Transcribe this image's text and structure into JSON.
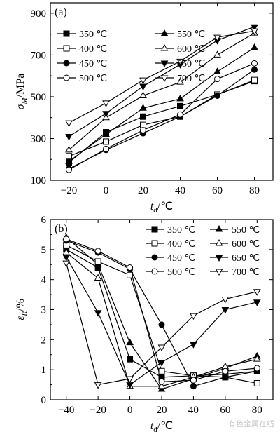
{
  "chart_data": [
    {
      "type": "line",
      "panel_label": "(a)",
      "xlabel": "t_d/℃",
      "ylabel": "σ_M/MPa",
      "x": [
        -20,
        0,
        20,
        40,
        60,
        80
      ],
      "xlim": [
        -30,
        90
      ],
      "ylim": [
        100,
        950
      ],
      "xticks": [
        -20,
        0,
        20,
        40,
        60,
        80
      ],
      "yticks": [
        100,
        300,
        500,
        700,
        900
      ],
      "legend_position": "top-left",
      "series": [
        {
          "name": "350 ℃",
          "marker": "filled-square",
          "values": [
            185,
            330,
            405,
            455,
            510,
            575
          ]
        },
        {
          "name": "550 ℃",
          "marker": "filled-triangle",
          "values": [
            190,
            320,
            445,
            490,
            620,
            735
          ]
        },
        {
          "name": "400 ℃",
          "marker": "open-square",
          "values": [
            215,
            285,
            365,
            405,
            510,
            580
          ]
        },
        {
          "name": "600 ℃",
          "marker": "open-triangle",
          "values": [
            245,
            400,
            505,
            570,
            700,
            805
          ]
        },
        {
          "name": "450 ℃",
          "marker": "filled-circle",
          "values": [
            155,
            245,
            325,
            405,
            505,
            630
          ]
        },
        {
          "name": "650 ℃",
          "marker": "filled-inv-triangle",
          "values": [
            310,
            420,
            550,
            655,
            770,
            835
          ]
        },
        {
          "name": "500 ℃",
          "marker": "open-circle",
          "values": [
            150,
            250,
            340,
            415,
            585,
            660
          ]
        },
        {
          "name": "700 ℃",
          "marker": "open-inv-triangle",
          "values": [
            375,
            470,
            580,
            670,
            785,
            815
          ]
        }
      ]
    },
    {
      "type": "line",
      "panel_label": "(b)",
      "xlabel": "t_d/℃",
      "ylabel": "ε_R/%",
      "x": [
        -40,
        -20,
        0,
        20,
        40,
        60,
        80
      ],
      "xlim": [
        -50,
        90
      ],
      "ylim": [
        0,
        6
      ],
      "xticks": [
        -40,
        -20,
        0,
        20,
        40,
        60,
        80
      ],
      "yticks": [
        0,
        1,
        2,
        3,
        4,
        5,
        6
      ],
      "legend_position": "top-right",
      "series": [
        {
          "name": "350 ℃",
          "marker": "filled-square",
          "values": [
            5.0,
            4.4,
            1.35,
            0.75,
            0.8,
            0.85,
            0.95
          ]
        },
        {
          "name": "550 ℃",
          "marker": "filled-triangle",
          "values": [
            5.4,
            4.5,
            1.9,
            0.35,
            0.7,
            1.05,
            1.45
          ]
        },
        {
          "name": "400 ℃",
          "marker": "open-square",
          "values": [
            5.15,
            4.6,
            4.15,
            0.95,
            0.8,
            0.75,
            0.55
          ]
        },
        {
          "name": "600 ℃",
          "marker": "open-triangle",
          "values": [
            4.9,
            4.05,
            0.45,
            0.45,
            0.75,
            1.1,
            1.35
          ]
        },
        {
          "name": "450 ℃",
          "marker": "filled-circle",
          "values": [
            5.3,
            4.9,
            4.35,
            2.5,
            0.45,
            0.75,
            0.95
          ]
        },
        {
          "name": "650 ℃",
          "marker": "filled-inv-triangle",
          "values": [
            4.75,
            2.9,
            0.5,
            1.25,
            1.85,
            3.0,
            3.25
          ]
        },
        {
          "name": "500 ℃",
          "marker": "open-circle",
          "values": [
            5.35,
            4.95,
            4.4,
            0.6,
            0.65,
            0.95,
            1.05
          ]
        },
        {
          "name": "700 ℃",
          "marker": "open-inv-triangle",
          "values": [
            4.55,
            0.5,
            0.7,
            1.75,
            2.8,
            3.35,
            3.6
          ]
        }
      ]
    }
  ],
  "watermark": "有色金属在线"
}
